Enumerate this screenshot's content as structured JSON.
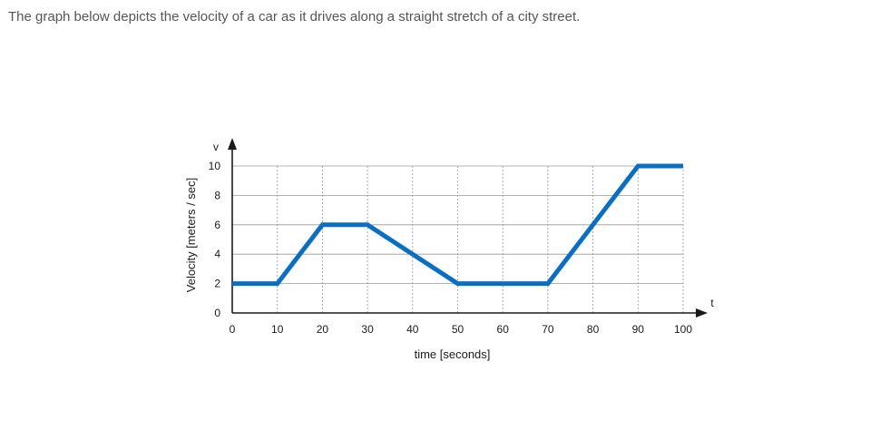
{
  "intro_text": "The graph below depicts the velocity of a car as it drives along a straight stretch of a city street.",
  "colors": {
    "line": "#0a6fc2",
    "axis": "#1a1a1a",
    "grid": "#9a9a9a",
    "text": "#555555"
  },
  "chart_data": {
    "type": "line",
    "title": "",
    "xlabel": "time [seconds]",
    "ylabel": "Velocity [meters / sec]",
    "x_axis_symbol": "t",
    "y_axis_symbol": "v",
    "xlim": [
      0,
      100
    ],
    "ylim": [
      0,
      10
    ],
    "x_ticks": [
      0,
      10,
      20,
      30,
      40,
      50,
      60,
      70,
      80,
      90,
      100
    ],
    "y_ticks": [
      0,
      2,
      4,
      6,
      8,
      10
    ],
    "grid": true,
    "legend": "none",
    "series": [
      {
        "x": [
          0,
          10,
          20,
          30,
          50,
          70,
          90,
          100
        ],
        "y": [
          2,
          2,
          6,
          6,
          2,
          2,
          10,
          10
        ]
      }
    ]
  }
}
